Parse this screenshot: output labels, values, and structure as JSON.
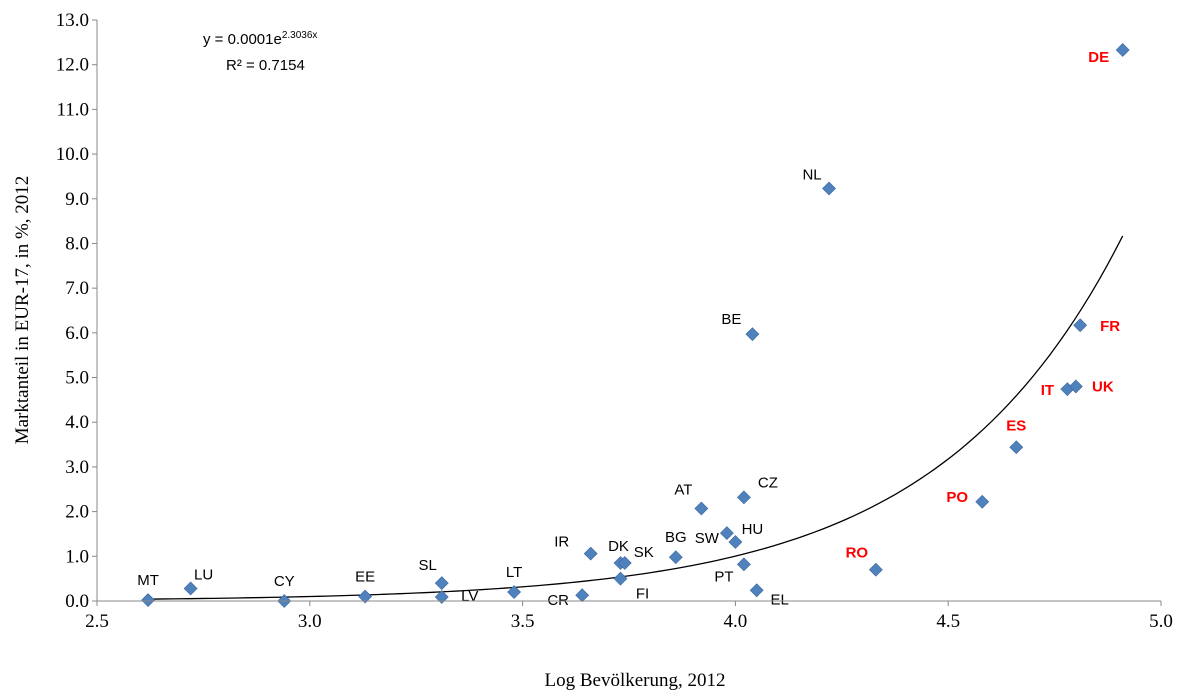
{
  "chart_data": {
    "type": "scatter",
    "xlabel": "Log Bevölkerung, 2012",
    "ylabel": "Marktanteil in EUR-17, in %, 2012",
    "xlim": [
      2.5,
      5.0
    ],
    "ylim": [
      0.0,
      13.0
    ],
    "xticks": [
      "2.5",
      "3.0",
      "3.5",
      "4.0",
      "4.5",
      "5.0"
    ],
    "yticks": [
      "0.0",
      "1.0",
      "2.0",
      "3.0",
      "4.0",
      "5.0",
      "6.0",
      "7.0",
      "8.0",
      "9.0",
      "10.0",
      "11.0",
      "12.0",
      "13.0"
    ],
    "grid": false,
    "marker_color": "#4f81bd",
    "highlight_color": "#ff0000",
    "trendline": {
      "type": "exponential",
      "a": 0.0001,
      "b": 2.3036,
      "x_range": [
        2.62,
        4.91
      ],
      "equation_prefix": "y = 0.0001e",
      "equation_exponent": "2.3036x",
      "r2_label": "R² = 0.7154"
    },
    "points": [
      {
        "label": "MT",
        "x": 2.62,
        "y": 0.02,
        "highlight": false
      },
      {
        "label": "LU",
        "x": 2.72,
        "y": 0.28,
        "highlight": false
      },
      {
        "label": "CY",
        "x": 2.94,
        "y": 0.0,
        "highlight": false
      },
      {
        "label": "EE",
        "x": 3.13,
        "y": 0.1,
        "highlight": false
      },
      {
        "label": "SL",
        "x": 3.31,
        "y": 0.4,
        "highlight": false
      },
      {
        "label": "LV",
        "x": 3.31,
        "y": 0.09,
        "highlight": false
      },
      {
        "label": "LT",
        "x": 3.48,
        "y": 0.2,
        "highlight": false
      },
      {
        "label": "CR",
        "x": 3.64,
        "y": 0.13,
        "highlight": false
      },
      {
        "label": "IR",
        "x": 3.66,
        "y": 1.06,
        "highlight": false
      },
      {
        "label": "DK",
        "x": 3.73,
        "y": 0.85,
        "highlight": false
      },
      {
        "label": "SK",
        "x": 3.74,
        "y": 0.85,
        "highlight": false
      },
      {
        "label": "FI",
        "x": 3.73,
        "y": 0.5,
        "highlight": false
      },
      {
        "label": "BG",
        "x": 3.86,
        "y": 0.98,
        "highlight": false
      },
      {
        "label": "AT",
        "x": 3.92,
        "y": 2.07,
        "highlight": false
      },
      {
        "label": "SW",
        "x": 3.98,
        "y": 1.52,
        "highlight": false
      },
      {
        "label": "HU",
        "x": 4.0,
        "y": 1.32,
        "highlight": false
      },
      {
        "label": "CZ",
        "x": 4.02,
        "y": 2.32,
        "highlight": false
      },
      {
        "label": "PT",
        "x": 4.02,
        "y": 0.82,
        "highlight": false
      },
      {
        "label": "EL",
        "x": 4.05,
        "y": 0.24,
        "highlight": false
      },
      {
        "label": "BE",
        "x": 4.04,
        "y": 5.97,
        "highlight": false
      },
      {
        "label": "NL",
        "x": 4.22,
        "y": 9.23,
        "highlight": false
      },
      {
        "label": "RO",
        "x": 4.33,
        "y": 0.7,
        "highlight": true
      },
      {
        "label": "PO",
        "x": 4.58,
        "y": 2.22,
        "highlight": true
      },
      {
        "label": "ES",
        "x": 4.66,
        "y": 3.44,
        "highlight": true
      },
      {
        "label": "IT",
        "x": 4.78,
        "y": 4.74,
        "highlight": true
      },
      {
        "label": "UK",
        "x": 4.8,
        "y": 4.8,
        "highlight": true
      },
      {
        "label": "FR",
        "x": 4.81,
        "y": 6.17,
        "highlight": true
      },
      {
        "label": "DE",
        "x": 4.91,
        "y": 12.33,
        "highlight": true
      }
    ]
  }
}
